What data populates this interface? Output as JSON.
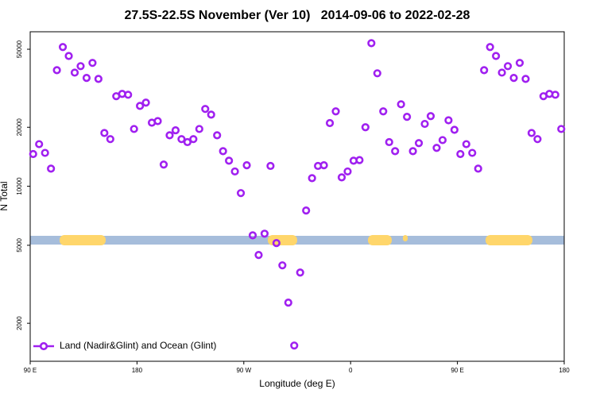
{
  "chart_data": {
    "type": "scatter",
    "title": "27.5S-22.5S November (Ver 10)   2014-09-06 to 2022-02-28",
    "xlabel": "Longitude (deg E)",
    "ylabel": "N Total",
    "log_y": true,
    "legend": "bottom left",
    "xlim": [
      90,
      540
    ],
    "xticks": [
      {
        "value": 90,
        "label": "90 E"
      },
      180,
      {
        "value": 270,
        "label": "90 W"
      },
      {
        "value": 360,
        "label": "0"
      },
      {
        "value": 450,
        "label": "90 E"
      },
      {
        "value": 540,
        "label": "180"
      }
    ],
    "ylim": [
      1280,
      61400
    ],
    "yticks": [
      2000,
      5000,
      10000,
      20000,
      50000
    ],
    "series": [
      {
        "name": "Land (Nadir&Glint) and Ocean (Glint)",
        "color": "#a020f0",
        "x": [
          92.5,
          97.5,
          102.5,
          107.5,
          112.5,
          117.5,
          122.5,
          127.5,
          132.5,
          137.5,
          142.5,
          147.5,
          152.5,
          157.5,
          162.5,
          167.5,
          172.5,
          177.5,
          182.5,
          187.5,
          192.5,
          197.5,
          202.5,
          207.5,
          212.5,
          217.5,
          222.5,
          227.5,
          232.5,
          237.5,
          242.5,
          247.5,
          252.5,
          257.5,
          262.5,
          267.5,
          272.5,
          277.5,
          282.5,
          287.5,
          292.5,
          297.5,
          302.5,
          307.5,
          312.5,
          317.5,
          322.5,
          327.5,
          332.5,
          337.5,
          342.5,
          347.5,
          352.5,
          357.5,
          362.5,
          367.5,
          372.5,
          377.5,
          382.5,
          387.5,
          392.5,
          397.5,
          402.5,
          407.5,
          412.5,
          417.5,
          422.5,
          427.5,
          432.5,
          437.5,
          442.5,
          447.5,
          452.5,
          457.5,
          462.5,
          467.5,
          472.5,
          477.5,
          482.5,
          487.5,
          492.5,
          497.5,
          502.5,
          507.5,
          512.5,
          517.5,
          522.5,
          527.5,
          532.5,
          537.5
        ],
        "values": [
          14600,
          16400,
          14800,
          12300,
          39100,
          51300,
          46200,
          38000,
          41000,
          35700,
          42600,
          35300,
          18700,
          17400,
          28800,
          29600,
          29300,
          19600,
          25700,
          26700,
          21100,
          21500,
          12900,
          18200,
          19300,
          17400,
          16800,
          17400,
          19600,
          24800,
          23200,
          18200,
          15100,
          13500,
          11900,
          9230,
          12800,
          5620,
          4460,
          5730,
          12700,
          5130,
          3950,
          2550,
          1540,
          3630,
          7520,
          11000,
          12700,
          12800,
          21000,
          24100,
          11100,
          11900,
          13500,
          13600,
          20000,
          53700,
          37700,
          24100,
          16800,
          15100,
          26200,
          22600,
          15100,
          16600,
          20800,
          22800,
          15700,
          17200,
          21700,
          19400,
          14600,
          16400,
          14800,
          12300,
          39100,
          51300,
          46200,
          38000,
          41000,
          35700,
          42600,
          35300,
          18700,
          17400,
          28800,
          29600,
          29300,
          19600
        ]
      }
    ]
  }
}
